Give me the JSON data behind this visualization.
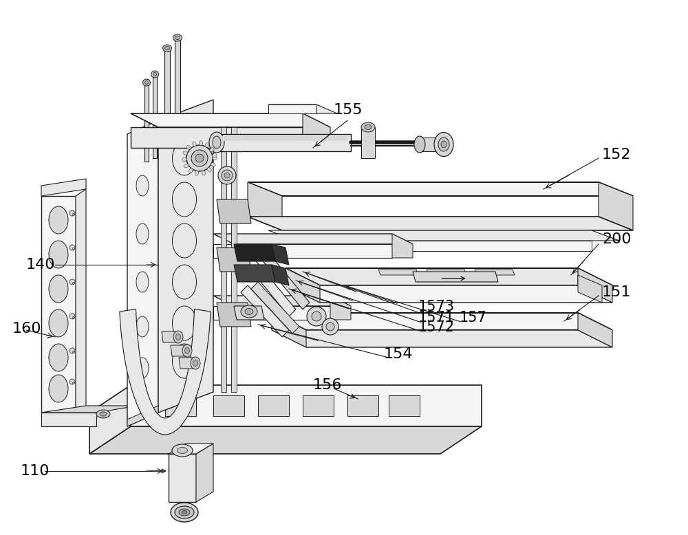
{
  "bg": "#ffffff",
  "lc": "#1a1a1a",
  "figsize": [
    10.0,
    7.78
  ],
  "dpi": 100,
  "lw": 0.9,
  "gray1": "#f5f5f5",
  "gray2": "#e8e8e8",
  "gray3": "#d8d8d8",
  "gray4": "#c8c8c8",
  "gray5": "#b0b0b0",
  "dark1": "#222222",
  "dark2": "#444444"
}
